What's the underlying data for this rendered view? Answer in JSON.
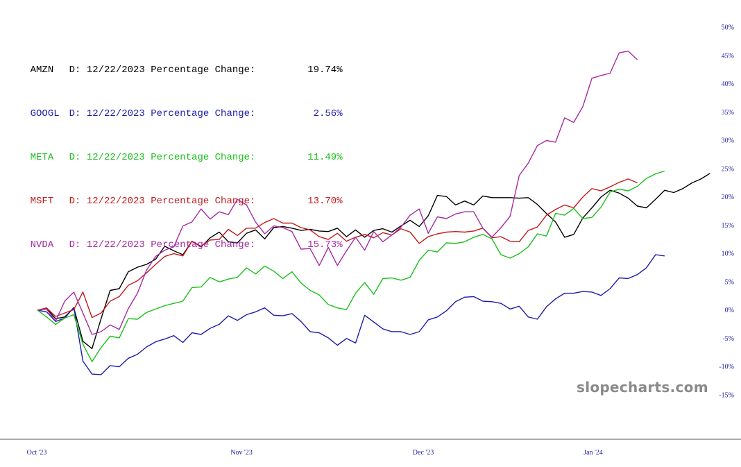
{
  "chart_data": {
    "type": "line",
    "watermark": "slopecharts.com",
    "date_label": "D: 12/22/2023",
    "change_label": "Percentage Change:",
    "x_ticks": [
      "Oct '23",
      "Nov '23",
      "Dec '23",
      "Jan '24"
    ],
    "y_ticks": [
      "50%",
      "45%",
      "40%",
      "35%",
      "30%",
      "25%",
      "20%",
      "15%",
      "10%",
      "5%",
      "0%",
      "-5%",
      "-10%",
      "-15%"
    ],
    "ylim": [
      -15,
      50
    ],
    "grid": false,
    "legend_position": "top-left",
    "series": [
      {
        "name": "AMZN",
        "color": "#000000",
        "change": "19.74%",
        "values": [
          0,
          0.3,
          -1.5,
          -1.2,
          0.4,
          -5.5,
          -6.8,
          -1.5,
          3.5,
          3.8,
          6.8,
          7.6,
          8.1,
          9.0,
          11.3,
          10.5,
          9.8,
          12.2,
          11.2,
          12.8,
          13.8,
          12.1,
          11.9,
          13.6,
          14.2,
          12.6,
          14.6,
          14.8,
          14.5,
          14.1,
          14.3,
          14.0,
          13.9,
          14.5,
          13.0,
          14.2,
          12.9,
          14.1,
          14.4,
          13.8,
          14.9,
          15.9,
          14.8,
          16.7,
          20.3,
          20.1,
          18.6,
          19.3,
          18.6,
          20.2,
          19.9,
          19.9,
          19.9,
          19.8,
          19.9,
          18.7,
          17.1,
          15.6,
          12.9,
          13.4,
          16.3,
          18.1,
          20.0,
          21.2,
          20.7,
          19.8,
          18.4,
          18.1,
          19.6,
          21.2,
          20.8,
          21.5,
          22.5,
          23.2,
          24.2
        ]
      },
      {
        "name": "GOOGL",
        "color": "#1c1caa",
        "change": "2.56%",
        "values": [
          0,
          -0.3,
          -2.0,
          -1.4,
          0.5,
          -9.0,
          -11.3,
          -11.4,
          -9.8,
          -10.0,
          -8.5,
          -7.8,
          -6.5,
          -5.6,
          -5.1,
          -4.5,
          -5.7,
          -4.0,
          -4.3,
          -3.2,
          -2.5,
          -1.0,
          -1.8,
          -0.8,
          -0.3,
          0.4,
          -0.9,
          -1.0,
          -0.6,
          -2.0,
          -3.8,
          -4.0,
          -4.9,
          -6.2,
          -5.0,
          -5.8,
          -0.9,
          -2.1,
          -3.3,
          -3.8,
          -3.8,
          -4.3,
          -3.8,
          -1.7,
          -1.2,
          -0.1,
          1.5,
          2.3,
          2.4,
          1.6,
          1.5,
          1.2,
          0.2,
          0.7,
          -1.2,
          -1.6,
          0.6,
          2.0,
          3.0,
          3.0,
          3.3,
          3.2,
          2.6,
          3.8,
          5.7,
          5.6,
          6.3,
          7.5,
          9.8,
          9.6
        ]
      },
      {
        "name": "META",
        "color": "#19c019",
        "change": "11.49%",
        "values": [
          0,
          -1.2,
          -2.5,
          -1.4,
          -0.8,
          -6.0,
          -9.1,
          -6.6,
          -4.6,
          -4.9,
          -1.5,
          -1.6,
          -0.4,
          0.2,
          0.8,
          1.2,
          1.6,
          4.0,
          4.1,
          5.8,
          5.0,
          5.5,
          5.8,
          7.5,
          6.4,
          7.8,
          6.9,
          5.6,
          6.8,
          4.8,
          3.5,
          2.7,
          1.0,
          0.4,
          0.1,
          3.0,
          4.9,
          2.8,
          5.6,
          5.7,
          5.3,
          5.8,
          8.8,
          10.6,
          10.3,
          11.9,
          11.8,
          12.1,
          12.9,
          13.4,
          12.6,
          9.8,
          9.2,
          10.0,
          11.2,
          13.5,
          13.1,
          17.1,
          16.8,
          18.0,
          16.2,
          16.4,
          18.2,
          20.9,
          21.4,
          21.1,
          21.9,
          23.3,
          24.1,
          24.6
        ]
      },
      {
        "name": "MSFT",
        "color": "#c41a1a",
        "change": "13.70%",
        "values": [
          0,
          0.4,
          -1.1,
          -0.5,
          0.1,
          3.2,
          -1.3,
          -0.5,
          1.6,
          2.4,
          4.4,
          5.2,
          6.6,
          8.1,
          9.5,
          10.0,
          9.6,
          12.2,
          11.3,
          12.4,
          12.5,
          14.3,
          13.2,
          14.5,
          14.5,
          15.5,
          16.2,
          15.4,
          15.4,
          14.6,
          14.2,
          13.0,
          12.5,
          13.6,
          12.2,
          12.9,
          13.4,
          12.8,
          13.7,
          13.3,
          14.4,
          13.8,
          11.8,
          13.0,
          13.5,
          13.8,
          13.9,
          13.8,
          14.0,
          14.5,
          12.8,
          13.0,
          12.2,
          12.1,
          14.1,
          14.7,
          16.8,
          17.8,
          18.6,
          18.1,
          20.0,
          21.5,
          21.1,
          21.8,
          22.6,
          23.2,
          22.5
        ]
      },
      {
        "name": "NVDA",
        "color": "#a52aa5",
        "change": "15.73%",
        "values": [
          0,
          0.2,
          -1.9,
          1.6,
          3.2,
          -0.5,
          -4.3,
          -3.8,
          -2.6,
          -3.4,
          0.3,
          3.0,
          7.1,
          9.5,
          10.6,
          11.2,
          14.9,
          15.6,
          17.9,
          16.1,
          17.4,
          16.9,
          19.6,
          18.6,
          15.6,
          13.5,
          14.9,
          14.6,
          13.9,
          10.8,
          10.9,
          7.9,
          11.1,
          7.9,
          10.5,
          12.9,
          10.6,
          13.9,
          12.1,
          13.3,
          14.7,
          16.8,
          17.9,
          13.6,
          16.5,
          16.2,
          17.0,
          17.4,
          17.4,
          14.5,
          12.9,
          14.6,
          16.6,
          23.8,
          26.0,
          29.1,
          30.0,
          29.7,
          34.0,
          33.2,
          36.0,
          41.0,
          41.5,
          41.9,
          45.5,
          45.8,
          44.3
        ]
      }
    ]
  }
}
